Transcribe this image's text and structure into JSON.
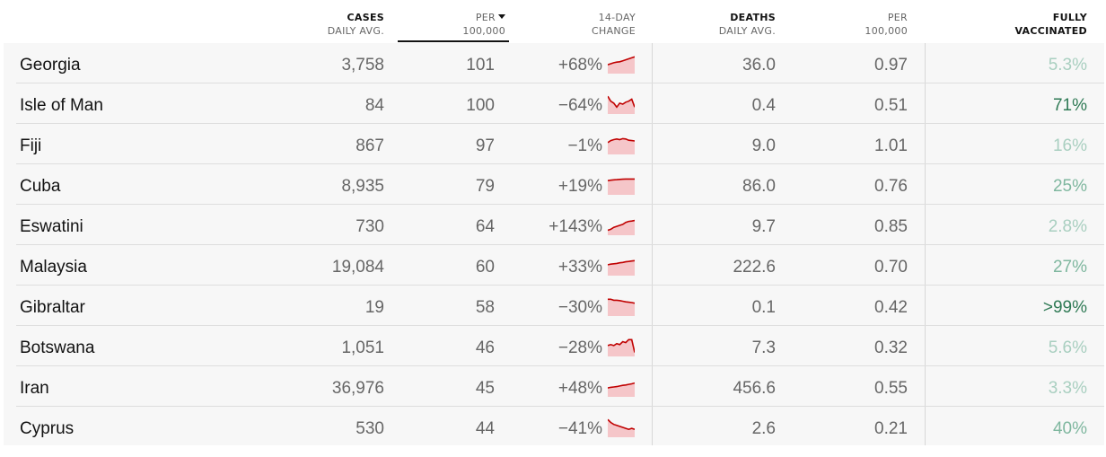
{
  "header": {
    "cases": {
      "l1": "CASES",
      "l2": "DAILY AVG."
    },
    "per1": {
      "l1": "PER",
      "l2": "100,000"
    },
    "change": {
      "l1": "14-DAY",
      "l2": "CHANGE"
    },
    "deaths": {
      "l1": "DEATHS",
      "l2": "DAILY AVG."
    },
    "per2": {
      "l1": "PER",
      "l2": "100,000"
    },
    "vaccinated": {
      "l1": "FULLY",
      "l2": "VACCINATED"
    }
  },
  "colors": {
    "spark_line": "#c00000",
    "spark_fill": "#f5c6c9",
    "vacc_low": "#a9cfc0",
    "vacc_mid": "#7fb79f",
    "vacc_high": "#2f7a55"
  },
  "rows": [
    {
      "country": "Georgia",
      "cases": "3,758",
      "per": "101",
      "change": "+68%",
      "deaths": "36.0",
      "dper": "0.97",
      "vacc": "5.3%",
      "vacc_pct": 5.3,
      "trend": [
        0.45,
        0.5,
        0.55,
        0.58,
        0.6,
        0.65,
        0.7,
        0.75,
        0.8,
        0.85
      ]
    },
    {
      "country": "Isle of Man",
      "cases": "84",
      "per": "100",
      "change": "−64%",
      "deaths": "0.4",
      "dper": "0.51",
      "vacc": "71%",
      "vacc_pct": 71,
      "trend": [
        0.9,
        0.65,
        0.55,
        0.35,
        0.55,
        0.5,
        0.6,
        0.65,
        0.75,
        0.35
      ]
    },
    {
      "country": "Fiji",
      "cases": "867",
      "per": "97",
      "change": "−1%",
      "deaths": "9.0",
      "dper": "1.01",
      "vacc": "16%",
      "vacc_pct": 16,
      "trend": [
        0.6,
        0.7,
        0.75,
        0.78,
        0.75,
        0.8,
        0.78,
        0.72,
        0.7,
        0.68
      ]
    },
    {
      "country": "Cuba",
      "cases": "8,935",
      "per": "79",
      "change": "+19%",
      "deaths": "86.0",
      "dper": "0.76",
      "vacc": "25%",
      "vacc_pct": 25,
      "trend": [
        0.72,
        0.74,
        0.76,
        0.77,
        0.78,
        0.79,
        0.8,
        0.8,
        0.8,
        0.8
      ]
    },
    {
      "country": "Eswatini",
      "cases": "730",
      "per": "64",
      "change": "+143%",
      "deaths": "9.7",
      "dper": "0.85",
      "vacc": "2.8%",
      "vacc_pct": 2.8,
      "trend": [
        0.25,
        0.3,
        0.4,
        0.45,
        0.5,
        0.55,
        0.65,
        0.7,
        0.72,
        0.75
      ]
    },
    {
      "country": "Malaysia",
      "cases": "19,084",
      "per": "60",
      "change": "+33%",
      "deaths": "222.6",
      "dper": "0.70",
      "vacc": "27%",
      "vacc_pct": 27,
      "trend": [
        0.55,
        0.58,
        0.6,
        0.62,
        0.65,
        0.67,
        0.7,
        0.72,
        0.74,
        0.76
      ]
    },
    {
      "country": "Gibraltar",
      "cases": "19",
      "per": "58",
      "change": "−30%",
      "deaths": "0.1",
      "dper": "0.42",
      "vacc": ">99%",
      "vacc_pct": 99,
      "trend": [
        0.85,
        0.85,
        0.8,
        0.8,
        0.78,
        0.75,
        0.72,
        0.7,
        0.68,
        0.65
      ]
    },
    {
      "country": "Botswana",
      "cases": "1,051",
      "per": "46",
      "change": "−28%",
      "deaths": "7.3",
      "dper": "0.32",
      "vacc": "5.6%",
      "vacc_pct": 5.6,
      "trend": [
        0.55,
        0.6,
        0.55,
        0.65,
        0.6,
        0.75,
        0.7,
        0.85,
        0.85,
        0.2
      ]
    },
    {
      "country": "Iran",
      "cases": "36,976",
      "per": "45",
      "change": "+48%",
      "deaths": "456.6",
      "dper": "0.55",
      "vacc": "3.3%",
      "vacc_pct": 3.3,
      "trend": [
        0.45,
        0.48,
        0.5,
        0.52,
        0.55,
        0.58,
        0.6,
        0.63,
        0.66,
        0.7
      ]
    },
    {
      "country": "Cyprus",
      "cases": "530",
      "per": "44",
      "change": "−41%",
      "deaths": "2.6",
      "dper": "0.21",
      "vacc": "40%",
      "vacc_pct": 40,
      "trend": [
        0.9,
        0.75,
        0.65,
        0.6,
        0.55,
        0.5,
        0.45,
        0.4,
        0.45,
        0.4
      ]
    }
  ]
}
